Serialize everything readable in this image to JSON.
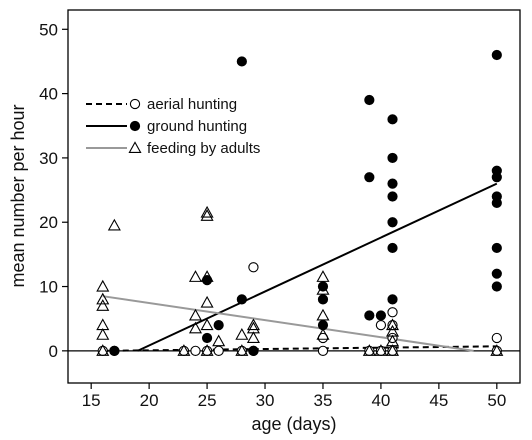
{
  "chart_data": {
    "type": "scatter",
    "xlabel": "age (days)",
    "ylabel": "mean number per hour",
    "xlim": [
      13,
      52
    ],
    "ylim": [
      -5,
      53
    ],
    "xticks": [
      15,
      20,
      25,
      30,
      35,
      40,
      45,
      50
    ],
    "yticks": [
      0,
      10,
      20,
      30,
      40,
      50
    ],
    "legend_position": "upper-left",
    "series": [
      {
        "name": "aerial hunting",
        "marker": "open-circle",
        "line_style": "dashed",
        "color": "#000000",
        "points": [
          [
            16,
            0
          ],
          [
            17,
            0
          ],
          [
            23,
            0
          ],
          [
            24,
            0
          ],
          [
            25,
            0
          ],
          [
            26,
            0
          ],
          [
            28,
            0
          ],
          [
            29,
            13
          ],
          [
            29,
            0
          ],
          [
            35,
            2
          ],
          [
            35,
            0
          ],
          [
            39,
            0
          ],
          [
            40,
            4
          ],
          [
            40,
            0
          ],
          [
            41,
            6
          ],
          [
            41,
            4
          ],
          [
            41,
            2
          ],
          [
            41,
            0
          ],
          [
            50,
            2
          ],
          [
            50,
            0
          ]
        ],
        "fit": [
          [
            16,
            0
          ],
          [
            50,
            0.7
          ]
        ]
      },
      {
        "name": "ground hunting",
        "marker": "filled-circle",
        "line_style": "solid",
        "color": "#000000",
        "points": [
          [
            17,
            0
          ],
          [
            25,
            11
          ],
          [
            25,
            2
          ],
          [
            26,
            4
          ],
          [
            28,
            45
          ],
          [
            28,
            8
          ],
          [
            29,
            0
          ],
          [
            35,
            10
          ],
          [
            35,
            8
          ],
          [
            35,
            4
          ],
          [
            39,
            39
          ],
          [
            39,
            27
          ],
          [
            39,
            5.5
          ],
          [
            40,
            5.5
          ],
          [
            41,
            36
          ],
          [
            41,
            30
          ],
          [
            41,
            26
          ],
          [
            41,
            24
          ],
          [
            41,
            20
          ],
          [
            41,
            16
          ],
          [
            41,
            8
          ],
          [
            50,
            46
          ],
          [
            50,
            28
          ],
          [
            50,
            27
          ],
          [
            50,
            24
          ],
          [
            50,
            23
          ],
          [
            50,
            16
          ],
          [
            50,
            12
          ],
          [
            50,
            10
          ]
        ],
        "fit": [
          [
            19,
            0
          ],
          [
            50,
            26
          ]
        ]
      },
      {
        "name": "feeding by adults",
        "marker": "open-triangle",
        "line_style": "solid",
        "color": "#999999",
        "points": [
          [
            16,
            10
          ],
          [
            16,
            8
          ],
          [
            16,
            7
          ],
          [
            16,
            4
          ],
          [
            16,
            2.5
          ],
          [
            16,
            0
          ],
          [
            17,
            19.5
          ],
          [
            23,
            0
          ],
          [
            24,
            11.5
          ],
          [
            24,
            5.5
          ],
          [
            24,
            3.5
          ],
          [
            25,
            21.5
          ],
          [
            25,
            21
          ],
          [
            25,
            11.5
          ],
          [
            25,
            7.5
          ],
          [
            25,
            4
          ],
          [
            25,
            0
          ],
          [
            26,
            1.5
          ],
          [
            28,
            2.5
          ],
          [
            28,
            0
          ],
          [
            29,
            4
          ],
          [
            29,
            3.5
          ],
          [
            29,
            2
          ],
          [
            35,
            11.5
          ],
          [
            35,
            9.5
          ],
          [
            35,
            5.5
          ],
          [
            35,
            2.5
          ],
          [
            39,
            0
          ],
          [
            40,
            0
          ],
          [
            41,
            4
          ],
          [
            41,
            3
          ],
          [
            41,
            1.5
          ],
          [
            41,
            0
          ],
          [
            50,
            0
          ]
        ],
        "fit": [
          [
            16,
            8.5
          ],
          [
            48,
            0
          ]
        ]
      }
    ]
  }
}
